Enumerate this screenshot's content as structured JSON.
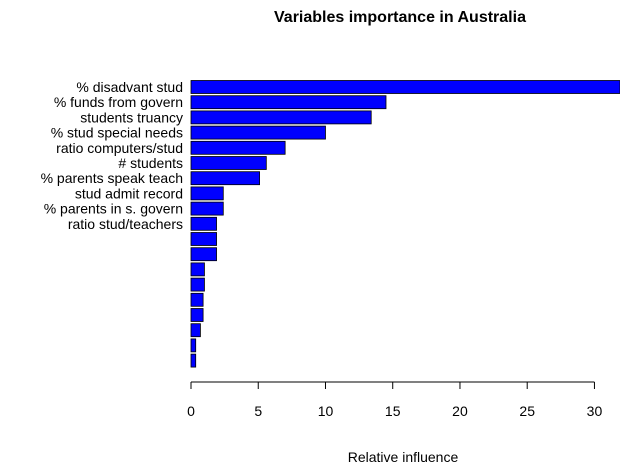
{
  "chart_data": {
    "type": "bar",
    "orientation": "horizontal",
    "title": "Variables importance in Australia",
    "x_label": "Relative influence",
    "categories": [
      "% disadvant stud",
      "% funds from govern",
      "students truancy",
      "% stud special needs",
      "ratio computers/stud",
      "# students",
      "% parents speak teach",
      "stud admit record",
      "% parents in s. govern",
      "ratio stud/teachers",
      null,
      null,
      null,
      null,
      null,
      null,
      null,
      null,
      null
    ],
    "values": [
      31.9,
      14.5,
      13.4,
      10.0,
      7.0,
      5.6,
      5.1,
      2.4,
      2.4,
      1.9,
      1.9,
      1.9,
      1.0,
      1.0,
      0.9,
      0.9,
      0.7,
      0.35,
      0.35
    ],
    "color": "#0000ff",
    "xlim": [
      0,
      31.9
    ],
    "xticks": [
      0,
      5,
      10,
      15,
      20,
      25,
      30
    ]
  }
}
